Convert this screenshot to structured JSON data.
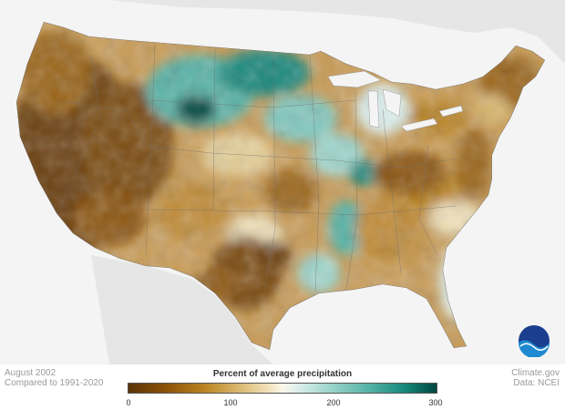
{
  "map": {
    "caption_left": [
      "August 2002",
      "Compared to 1991-2020"
    ],
    "caption_right": [
      "Climate.gov",
      "Data: NCEI"
    ],
    "legend": {
      "title": "Percent of average precipitation",
      "ticks": [
        "0",
        "100",
        "200",
        "300"
      ],
      "tick_values": [
        0,
        100,
        200,
        300
      ],
      "range": [
        0,
        300
      ]
    },
    "logo_text": "NOAA",
    "colors": {
      "very_dry": "#5a3306",
      "dry": "#b8801f",
      "near_normal": "#fbf6ea",
      "wet": "#55b2a6",
      "very_wet": "#00473f"
    }
  }
}
